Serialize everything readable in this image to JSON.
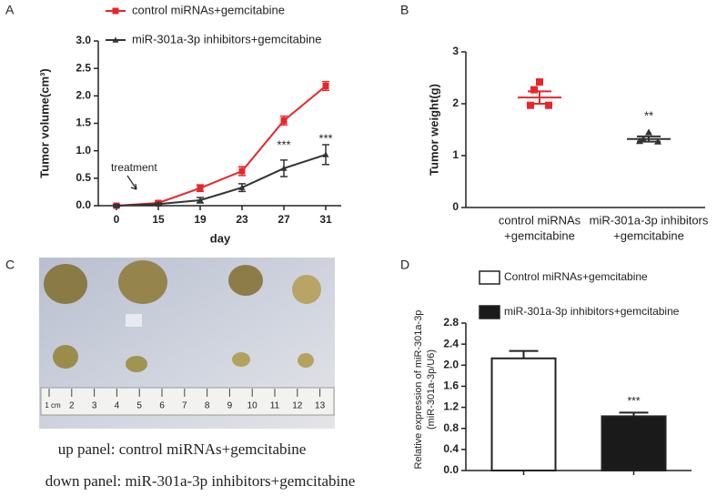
{
  "panel_labels": [
    "A",
    "B",
    "C",
    "D"
  ],
  "photo": {
    "ruler_labels": [
      "1 cm",
      "2",
      "3",
      "4",
      "5",
      "6",
      "7",
      "8",
      "9",
      "10",
      "11",
      "12",
      "13"
    ],
    "captions": [
      "up panel: control miRNAs+gemcitabine",
      "down panel: miR-301a-3p inhibitors+gemcitabine"
    ]
  },
  "chart_data": [
    {
      "type": "line",
      "ylabel": "Tumor volume(cm³)",
      "xlabel": "day",
      "categories": [
        "0",
        "15",
        "19",
        "23",
        "27",
        "31"
      ],
      "series": [
        {
          "name": "control miRNAs+gemcitabine",
          "color": "#e8262a",
          "marker": "square",
          "values": [
            0,
            0.05,
            0.32,
            0.63,
            1.55,
            2.18
          ],
          "errors": [
            0.02,
            0.03,
            0.06,
            0.08,
            0.08,
            0.08
          ]
        },
        {
          "name": "miR-301a-3p inhibitors+gemcitabine",
          "color": "#333333",
          "marker": "triangle",
          "values": [
            0,
            0.03,
            0.1,
            0.33,
            0.68,
            0.93
          ],
          "errors": [
            0.02,
            0.02,
            0.05,
            0.07,
            0.15,
            0.18
          ]
        }
      ],
      "ylim": [
        0,
        3
      ],
      "yticks": [
        {
          "value": 0,
          "label": "0.0"
        },
        {
          "value": 0.5,
          "label": "0.5"
        },
        {
          "value": 1,
          "label": "1.0"
        },
        {
          "value": 1.5,
          "label": "1.5"
        },
        {
          "value": 2,
          "label": "2.0"
        },
        {
          "value": 2.5,
          "label": "2.5"
        },
        {
          "value": 3,
          "label": "3.0"
        }
      ],
      "legend": "top",
      "annotations": [
        "***",
        "***",
        "treatment"
      ]
    },
    {
      "type": "scatter",
      "ylabel": "Tumor weight(g)",
      "categories": [
        [
          "control miRNAs",
          "+gemcitabine"
        ],
        [
          "miR-301a-3p inhibitors",
          "+gemcitabine"
        ]
      ],
      "groups": [
        {
          "color": "#e8262a",
          "marker": "square",
          "values": [
            2.42,
            2.27,
            1.97,
            1.97
          ],
          "mean": 2.12,
          "sem": 0.12
        },
        {
          "color": "#333333",
          "marker": "triangle",
          "values": [
            1.45,
            1.32,
            1.28,
            1.27
          ],
          "mean": 1.32,
          "sem": 0.05
        }
      ],
      "ylim": [
        0,
        3
      ],
      "yticks": [
        0,
        1,
        2,
        3
      ],
      "annotations": [
        "**"
      ]
    },
    {
      "type": "bar",
      "ylabel": [
        "Relative expression of  miR-301a-3p",
        "(miR-301a-3p/U6)"
      ],
      "series": [
        {
          "name": "Control miRNAs+gemcitabine",
          "color": "#ffffff",
          "values": [
            2.13
          ],
          "errors": [
            0.14
          ]
        },
        {
          "name": "miR-301a-3p inhibitors+gemcitabine",
          "color": "#1a1a1a",
          "values": [
            1.03
          ],
          "errors": [
            0.07
          ]
        }
      ],
      "ylim": [
        0,
        2.8
      ],
      "yticks": [
        {
          "value": 0,
          "label": "0.0"
        },
        {
          "value": 0.4,
          "label": "0.4"
        },
        {
          "value": 0.8,
          "label": "0.8"
        },
        {
          "value": 1.2,
          "label": "1.2"
        },
        {
          "value": 1.6,
          "label": "1.6"
        },
        {
          "value": 2,
          "label": "2.0"
        },
        {
          "value": 2.4,
          "label": "2.4"
        },
        {
          "value": 2.8,
          "label": "2.8"
        }
      ],
      "legend": "top",
      "annotations": [
        "***"
      ]
    }
  ]
}
